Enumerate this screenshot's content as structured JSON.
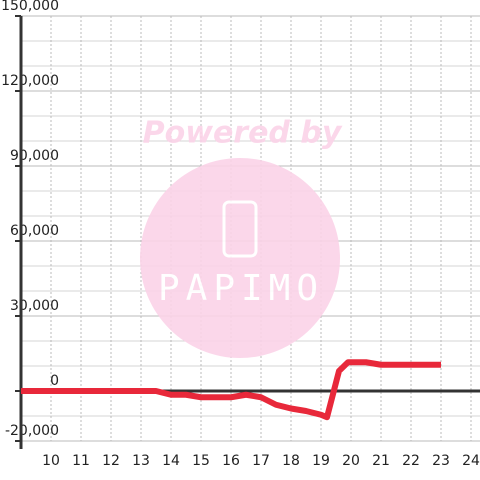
{
  "chart_data": {
    "type": "line",
    "watermark": {
      "line1": "Powered by",
      "line2": "PAPIMO"
    },
    "x": [
      9,
      9.5,
      10,
      10.5,
      11,
      11.5,
      12,
      12.5,
      13,
      13.5,
      14,
      14.5,
      15,
      15.5,
      16,
      16.5,
      17,
      17.5,
      18,
      18.5,
      19,
      19.2,
      19.6,
      19.9,
      20.5,
      21,
      22,
      23
    ],
    "series": [
      {
        "color": "#e8283a",
        "values": [
          0,
          0,
          0,
          0,
          0,
          0,
          0,
          0,
          0,
          0,
          -1500,
          -1500,
          -2500,
          -2500,
          -2500,
          -1500,
          -2500,
          -5500,
          -7000,
          -8000,
          -9500,
          -10500,
          8000,
          11500,
          11500,
          10500,
          10500,
          10500
        ]
      }
    ],
    "xlim": [
      9,
      24.3
    ],
    "ylim": [
      -20000,
      150000
    ],
    "xticks": [
      10,
      11,
      12,
      13,
      14,
      15,
      16,
      17,
      18,
      19,
      20,
      21,
      22,
      23,
      24
    ],
    "yticks": [
      {
        "value": -20000,
        "label": "-20,000"
      },
      {
        "value": 0,
        "label": "0"
      },
      {
        "value": 30000,
        "label": "30,000"
      },
      {
        "value": 60000,
        "label": "60,000"
      },
      {
        "value": 90000,
        "label": "90,000"
      },
      {
        "value": 120000,
        "label": "120,000"
      },
      {
        "value": 150000,
        "label": "150,000"
      }
    ],
    "minor_yticks": [
      -10000,
      10000,
      20000,
      40000,
      50000,
      70000,
      80000,
      100000,
      110000,
      130000,
      140000
    ],
    "grid": true
  }
}
